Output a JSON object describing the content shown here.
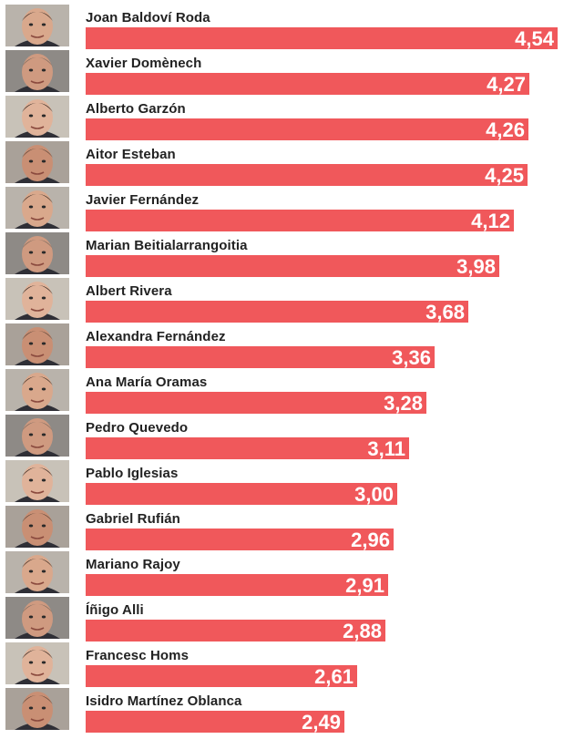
{
  "chart_data": {
    "type": "bar",
    "orientation": "horizontal",
    "bar_color": "#f0585b",
    "xlim": [
      0,
      4.54
    ],
    "categories": [
      "Joan Baldoví Roda",
      "Xavier Domènech",
      "Alberto Garzón",
      "Aitor Esteban",
      "Javier Fernández",
      "Marian Beitialarrangoitia",
      "Albert Rivera",
      "Alexandra Fernández",
      "Ana María Oramas",
      "Pedro Quevedo",
      "Pablo Iglesias",
      "Gabriel Rufián",
      "Mariano Rajoy",
      "Íñigo Alli",
      "Francesc Homs",
      "Isidro Martínez Oblanca"
    ],
    "values": [
      4.54,
      4.27,
      4.26,
      4.25,
      4.12,
      3.98,
      3.68,
      3.36,
      3.28,
      3.11,
      3.0,
      2.96,
      2.91,
      2.88,
      2.61,
      2.49
    ],
    "value_labels": [
      "4,54",
      "4,27",
      "4,26",
      "4,25",
      "4,12",
      "3,98",
      "3,68",
      "3,36",
      "3,28",
      "3,11",
      "3,00",
      "2,96",
      "2,91",
      "2,88",
      "2,61",
      "2,49"
    ]
  }
}
